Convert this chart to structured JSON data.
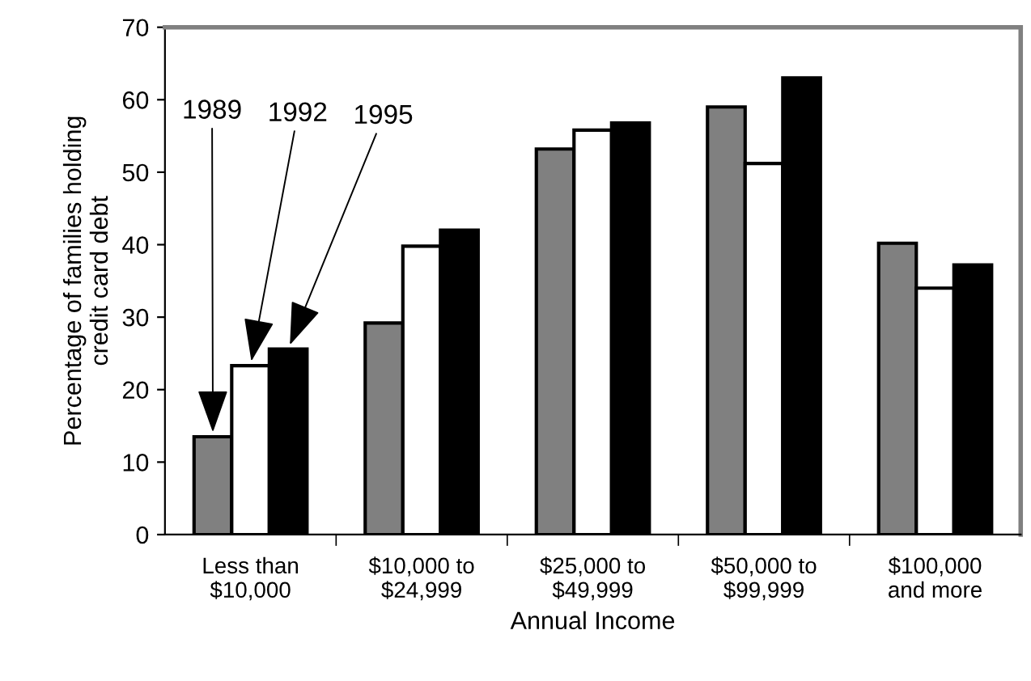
{
  "chart_data": {
    "type": "bar",
    "xlabel": "Annual Income",
    "ylabel": "Percentage of families holding\ncredit card debt",
    "categories": [
      "Less than\n$10,000",
      "$10,000 to\n$24,999",
      "$25,000 to\n$49,999",
      "$50,000 to\n$99,999",
      "$100,000\nand more"
    ],
    "series": [
      {
        "name": "1989",
        "color": "#808080",
        "values": [
          13.5,
          29.2,
          53.2,
          59,
          40.2
        ]
      },
      {
        "name": "1992",
        "color": "#ffffff",
        "values": [
          23.3,
          39.8,
          55.8,
          51.2,
          34
        ]
      },
      {
        "name": "1995",
        "color": "#000000",
        "values": [
          25.6,
          42,
          56.8,
          63,
          37.2
        ]
      }
    ],
    "ylim": [
      0,
      70
    ],
    "yticks": [
      0,
      10,
      20,
      30,
      40,
      50,
      60,
      70
    ],
    "grid": false,
    "legend": false
  }
}
